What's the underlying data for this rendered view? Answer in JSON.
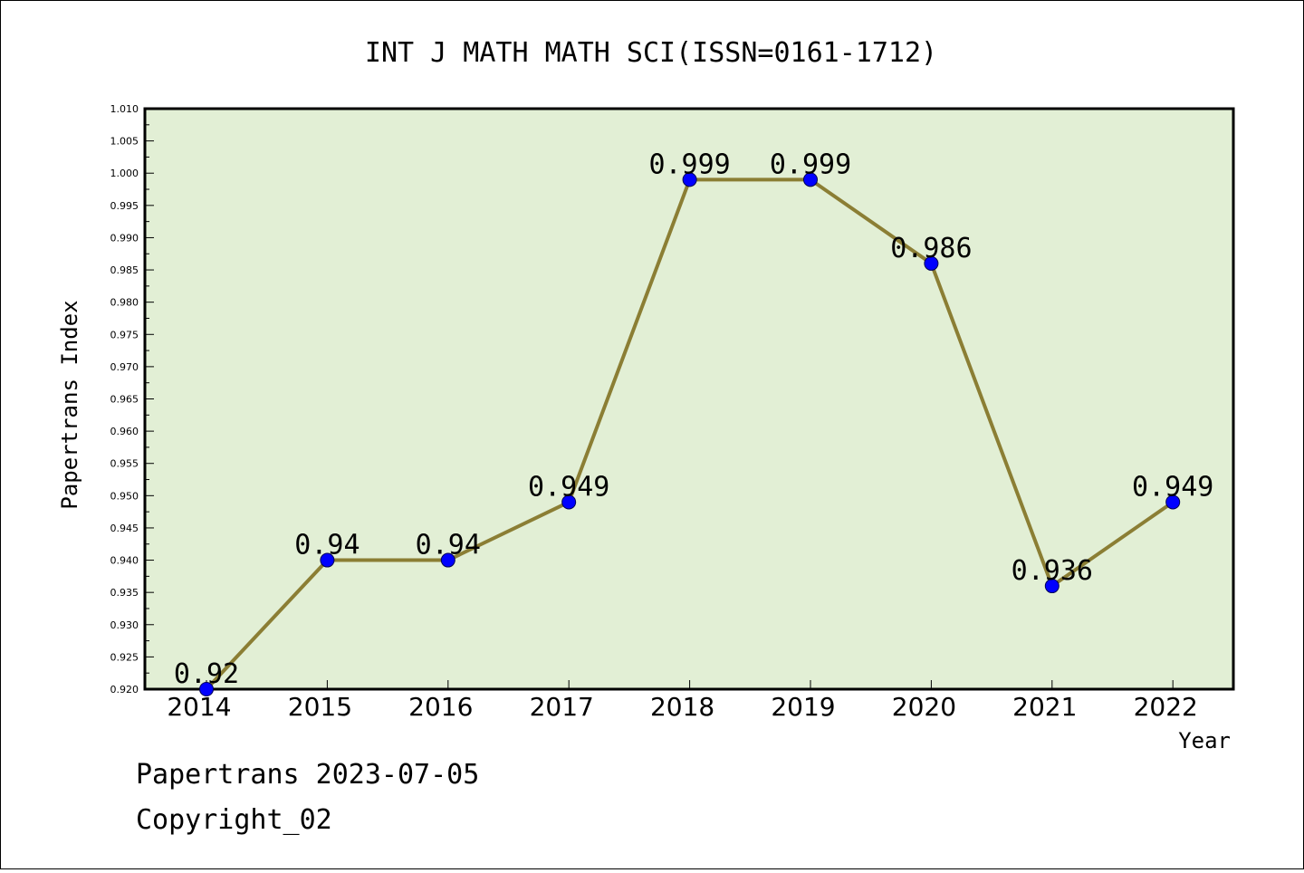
{
  "chart_data": {
    "type": "line",
    "title": "INT J MATH MATH SCI(ISSN=0161-1712)",
    "xlabel": "Year",
    "ylabel": "Papertrans Index",
    "categories": [
      "2014",
      "2015",
      "2016",
      "2017",
      "2018",
      "2019",
      "2020",
      "2021",
      "2022"
    ],
    "values": [
      0.92,
      0.94,
      0.94,
      0.949,
      0.999,
      0.999,
      0.986,
      0.936,
      0.949
    ],
    "data_labels": [
      "0.92",
      "0.94",
      "0.94",
      "0.949",
      "0.999",
      "0.999",
      "0.986",
      "0.936",
      "0.949"
    ],
    "ylim": [
      0.92,
      1.01
    ],
    "yticks": [
      "0.920",
      "0.925",
      "0.930",
      "0.935",
      "0.940",
      "0.945",
      "0.950",
      "0.955",
      "0.960",
      "0.965",
      "0.970",
      "0.975",
      "0.980",
      "0.985",
      "0.990",
      "0.995",
      "1.000",
      "1.005",
      "1.010"
    ],
    "grid": false,
    "legend": "none",
    "colors": {
      "plot_background": "#e2efd5",
      "line": "#8b7e34",
      "marker": "#0000ff"
    }
  },
  "footer": {
    "line1": "Papertrans 2023-07-05",
    "line2": "Copyright_02"
  }
}
